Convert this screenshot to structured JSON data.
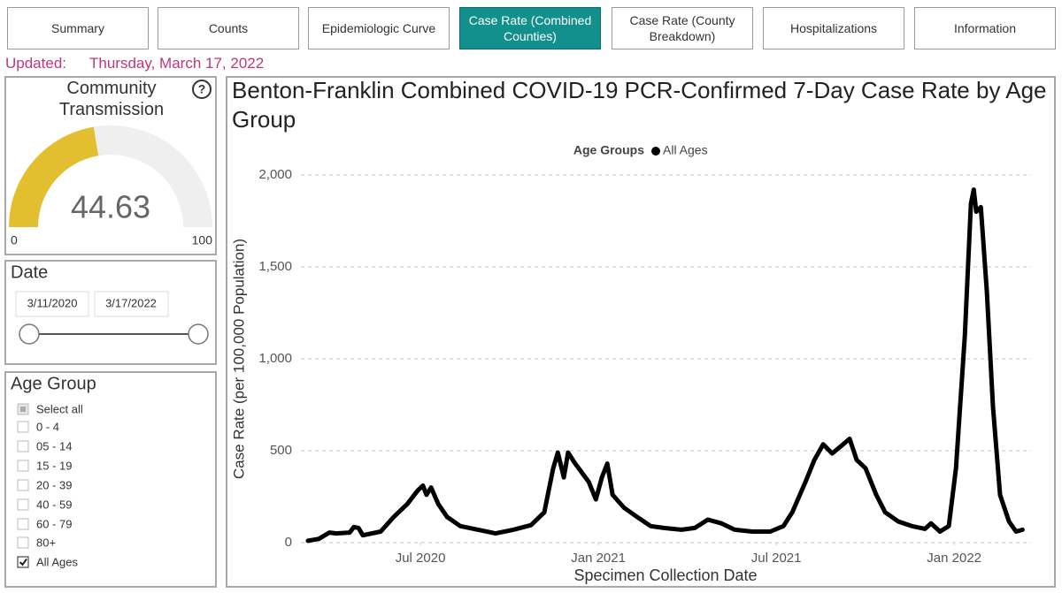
{
  "tabs": [
    {
      "label": "Summary",
      "active": false
    },
    {
      "label": "Counts",
      "active": false
    },
    {
      "label": "Epidemiologic Curve",
      "active": false
    },
    {
      "label": "Case Rate (Combined Counties)",
      "active": true
    },
    {
      "label": "Case Rate (County Breakdown)",
      "active": false
    },
    {
      "label": "Hospitalizations",
      "active": false
    },
    {
      "label": "Information",
      "active": false
    }
  ],
  "updated": {
    "label": "Updated:",
    "date": "Thursday, March 17, 2022"
  },
  "gauge": {
    "title": "Community Transmission",
    "value": 44.63,
    "min": 0,
    "max": 100,
    "color": "#e3bf2f"
  },
  "date_filter": {
    "title": "Date",
    "start": "3/11/2020",
    "end": "3/17/2022"
  },
  "age_filter": {
    "title": "Age Group",
    "items": [
      {
        "label": "Select all",
        "state": "partial"
      },
      {
        "label": "0 - 4",
        "state": "unchecked"
      },
      {
        "label": "05 - 14",
        "state": "unchecked"
      },
      {
        "label": "15 - 19",
        "state": "unchecked"
      },
      {
        "label": "20 - 39",
        "state": "unchecked"
      },
      {
        "label": "40 - 59",
        "state": "unchecked"
      },
      {
        "label": "60 - 79",
        "state": "unchecked"
      },
      {
        "label": "80+",
        "state": "unchecked"
      },
      {
        "label": "All Ages",
        "state": "checked"
      }
    ]
  },
  "chart_data": {
    "type": "line",
    "title": "Benton-Franklin Combined COVID-19 PCR-Confirmed 7-Day Case Rate by Age Group",
    "legend_title": "Age Groups",
    "x_label": "Specimen Collection Date",
    "y_label": "Case Rate (per 100,000 Population)",
    "x": [
      2020.184,
      2020.214,
      2020.244,
      2020.264,
      2020.301,
      2020.313,
      2020.326,
      2020.338,
      2020.388,
      2020.425,
      2020.463,
      2020.493,
      2020.507,
      2020.517,
      2020.53,
      2020.55,
      2020.575,
      2020.612,
      2020.662,
      2020.711,
      2020.761,
      2020.811,
      2020.848,
      2020.873,
      2020.886,
      2020.903,
      2020.915,
      2020.935,
      2020.973,
      2020.993,
      2021.01,
      2021.025,
      2021.04,
      2021.072,
      2021.109,
      2021.147,
      2021.184,
      2021.234,
      2021.271,
      2021.308,
      2021.346,
      2021.383,
      2021.433,
      2021.483,
      2021.52,
      2021.545,
      2021.582,
      2021.607,
      2021.632,
      2021.657,
      2021.682,
      2021.706,
      2021.726,
      2021.751,
      2021.781,
      2021.806,
      2021.843,
      2021.881,
      2021.918,
      2021.935,
      2021.96,
      2021.985,
      2022.005,
      2022.03,
      2022.047,
      2022.055,
      2022.062,
      2022.075,
      2022.092,
      2022.109,
      2022.129,
      2022.154,
      2022.174,
      2022.192
    ],
    "series": [
      {
        "name": "All Ages",
        "color": "#000000",
        "values": [
          10,
          20,
          55,
          50,
          55,
          85,
          80,
          40,
          60,
          140,
          210,
          285,
          310,
          260,
          300,
          210,
          140,
          90,
          70,
          50,
          70,
          95,
          165,
          405,
          490,
          355,
          490,
          430,
          330,
          235,
          355,
          430,
          260,
          190,
          140,
          90,
          80,
          70,
          80,
          125,
          105,
          70,
          60,
          60,
          90,
          165,
          330,
          450,
          535,
          485,
          525,
          565,
          450,
          405,
          260,
          165,
          115,
          90,
          75,
          105,
          60,
          90,
          405,
          1125,
          1845,
          1920,
          1800,
          1825,
          1365,
          740,
          260,
          115,
          60,
          70
        ]
      }
    ],
    "xlim": [
      2020.164,
      2022.216
    ],
    "xticks": [
      {
        "value": 2020.5,
        "label": "Jul 2020"
      },
      {
        "value": 2021.0,
        "label": "Jan 2021"
      },
      {
        "value": 2021.5,
        "label": "Jul 2021"
      },
      {
        "value": 2022.0,
        "label": "Jan 2022"
      }
    ],
    "ylim": [
      0,
      2000
    ],
    "yticks": [
      0,
      500,
      {
        "value": 1000,
        "label": "1,000"
      },
      {
        "value": 1500,
        "label": "1,500"
      },
      {
        "value": 2000,
        "label": "2,000"
      }
    ],
    "grid": true
  }
}
